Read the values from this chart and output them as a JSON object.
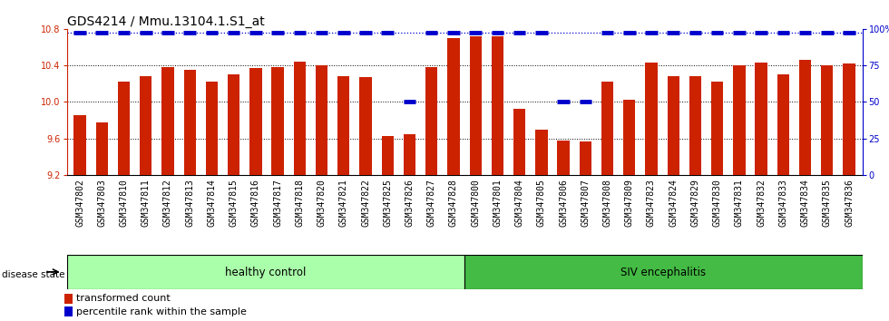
{
  "title": "GDS4214 / Mmu.13104.1.S1_at",
  "categories": [
    "GSM347802",
    "GSM347803",
    "GSM347810",
    "GSM347811",
    "GSM347812",
    "GSM347813",
    "GSM347814",
    "GSM347815",
    "GSM347816",
    "GSM347817",
    "GSM347818",
    "GSM347820",
    "GSM347821",
    "GSM347822",
    "GSM347825",
    "GSM347826",
    "GSM347827",
    "GSM347828",
    "GSM347800",
    "GSM347801",
    "GSM347804",
    "GSM347805",
    "GSM347806",
    "GSM347807",
    "GSM347808",
    "GSM347809",
    "GSM347823",
    "GSM347824",
    "GSM347829",
    "GSM347830",
    "GSM347831",
    "GSM347832",
    "GSM347833",
    "GSM347834",
    "GSM347835",
    "GSM347836"
  ],
  "values": [
    9.85,
    9.78,
    10.22,
    10.28,
    10.38,
    10.35,
    10.22,
    10.3,
    10.37,
    10.38,
    10.44,
    10.4,
    10.28,
    10.27,
    9.63,
    9.65,
    10.38,
    10.7,
    10.72,
    10.72,
    9.92,
    9.7,
    9.58,
    9.57,
    10.22,
    10.02,
    10.43,
    10.28,
    10.28,
    10.22,
    10.4,
    10.43,
    10.3,
    10.46,
    10.4,
    10.42
  ],
  "percentile_ranks": [
    100,
    100,
    100,
    100,
    100,
    100,
    100,
    100,
    100,
    100,
    100,
    100,
    100,
    100,
    100,
    50,
    100,
    100,
    100,
    100,
    100,
    100,
    50,
    50,
    100,
    100,
    100,
    100,
    100,
    100,
    100,
    100,
    100,
    100,
    100,
    100
  ],
  "bar_color": "#cc2200",
  "percentile_color": "#0000cc",
  "background_color": "#ffffff",
  "ylim_left": [
    9.2,
    10.8
  ],
  "ylim_right": [
    0,
    100
  ],
  "yticks_left": [
    9.2,
    9.6,
    10.0,
    10.4,
    10.8
  ],
  "yticks_right": [
    0,
    25,
    50,
    75,
    100
  ],
  "ytick_labels_right": [
    "0",
    "25",
    "50",
    "75",
    "100%"
  ],
  "healthy_control_count": 18,
  "healthy_control_label": "healthy control",
  "siv_label": "SIV encephalitis",
  "disease_state_label": "disease state",
  "legend_bar_label": "transformed count",
  "legend_dot_label": "percentile rank within the sample",
  "title_fontsize": 10,
  "tick_fontsize": 7,
  "bar_width": 0.55,
  "hc_color": "#aaffaa",
  "siv_color": "#44bb44",
  "xtick_bg": "#dddddd"
}
